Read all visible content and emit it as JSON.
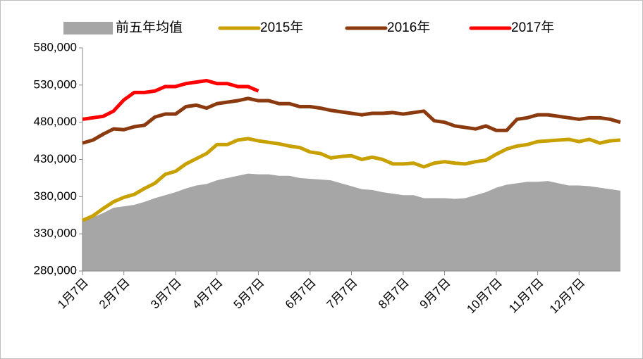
{
  "chart_data": {
    "type": "line",
    "categories": [
      "1月7日",
      null,
      null,
      null,
      "2月7日",
      null,
      null,
      null,
      null,
      "3月7日",
      null,
      null,
      null,
      "4月7日",
      null,
      null,
      null,
      "5月7日",
      null,
      null,
      null,
      null,
      "6月7日",
      null,
      null,
      null,
      "7月7日",
      null,
      null,
      null,
      null,
      "8月7日",
      null,
      null,
      null,
      "9月7日",
      null,
      null,
      null,
      null,
      "10月7日",
      null,
      null,
      null,
      "11月7日",
      null,
      null,
      null,
      "12月7日",
      null,
      null,
      null,
      null
    ],
    "ylim": [
      280000,
      580000
    ],
    "yticks": [
      {
        "value": 280000,
        "label": "280,000"
      },
      {
        "value": 330000,
        "label": "330,000"
      },
      {
        "value": 380000,
        "label": "380,000"
      },
      {
        "value": 430000,
        "label": "430,000"
      },
      {
        "value": 480000,
        "label": "480,000"
      },
      {
        "value": 530000,
        "label": "530,000"
      },
      {
        "value": 580000,
        "label": "580,000"
      }
    ],
    "series": [
      {
        "name": "前五年均值",
        "kind": "area",
        "color": "#a6a6a6",
        "values": [
          350000,
          352000,
          358000,
          365000,
          367000,
          369000,
          373000,
          378000,
          382000,
          386000,
          391000,
          395000,
          397000,
          402000,
          405000,
          408000,
          411000,
          410000,
          410000,
          408000,
          408000,
          405000,
          404000,
          403000,
          402000,
          398000,
          394000,
          390000,
          389000,
          386000,
          384000,
          382000,
          382000,
          378000,
          378000,
          378000,
          377000,
          378000,
          382000,
          386000,
          392000,
          396000,
          398000,
          400000,
          400000,
          401000,
          398000,
          395000,
          395000,
          394000,
          392000,
          390000,
          388000
        ]
      },
      {
        "name": "2015年",
        "color": "#c8a000",
        "values": [
          348000,
          354000,
          364000,
          373000,
          379000,
          383000,
          391000,
          398000,
          410000,
          414000,
          424000,
          431000,
          438000,
          450000,
          450000,
          456000,
          458000,
          455000,
          453000,
          451000,
          448000,
          446000,
          440000,
          438000,
          432000,
          434000,
          435000,
          430000,
          433000,
          430000,
          424000,
          424000,
          425000,
          420000,
          425000,
          427000,
          425000,
          424000,
          427000,
          429000,
          437000,
          444000,
          448000,
          450000,
          454000,
          455000,
          456000,
          457000,
          454000,
          457000,
          452000,
          455000,
          456000
        ]
      },
      {
        "name": "2016年",
        "color": "#8b3a0f",
        "values": [
          452000,
          456000,
          464000,
          471000,
          470000,
          474000,
          476000,
          487000,
          491000,
          491000,
          501000,
          503000,
          499000,
          505000,
          507000,
          509000,
          512000,
          509000,
          509000,
          505000,
          505000,
          501000,
          501000,
          499000,
          496000,
          494000,
          492000,
          490000,
          492000,
          492000,
          493000,
          491000,
          493000,
          495000,
          482000,
          480000,
          475000,
          473000,
          471000,
          475000,
          469000,
          469000,
          484000,
          486000,
          490000,
          490000,
          488000,
          486000,
          484000,
          486000,
          486000,
          484000,
          480000
        ]
      },
      {
        "name": "2017年",
        "color": "#ff0000",
        "values": [
          484000,
          486000,
          488000,
          495000,
          510000,
          520000,
          520000,
          522000,
          528000,
          528000,
          532000,
          534000,
          536000,
          532000,
          532000,
          528000,
          528000,
          522000,
          null,
          null,
          null,
          null,
          null,
          null,
          null,
          null,
          null,
          null,
          null,
          null,
          null,
          null,
          null,
          null,
          null,
          null,
          null,
          null,
          null,
          null,
          null,
          null,
          null,
          null,
          null,
          null,
          null,
          null,
          null,
          null,
          null,
          null,
          null
        ]
      }
    ]
  }
}
